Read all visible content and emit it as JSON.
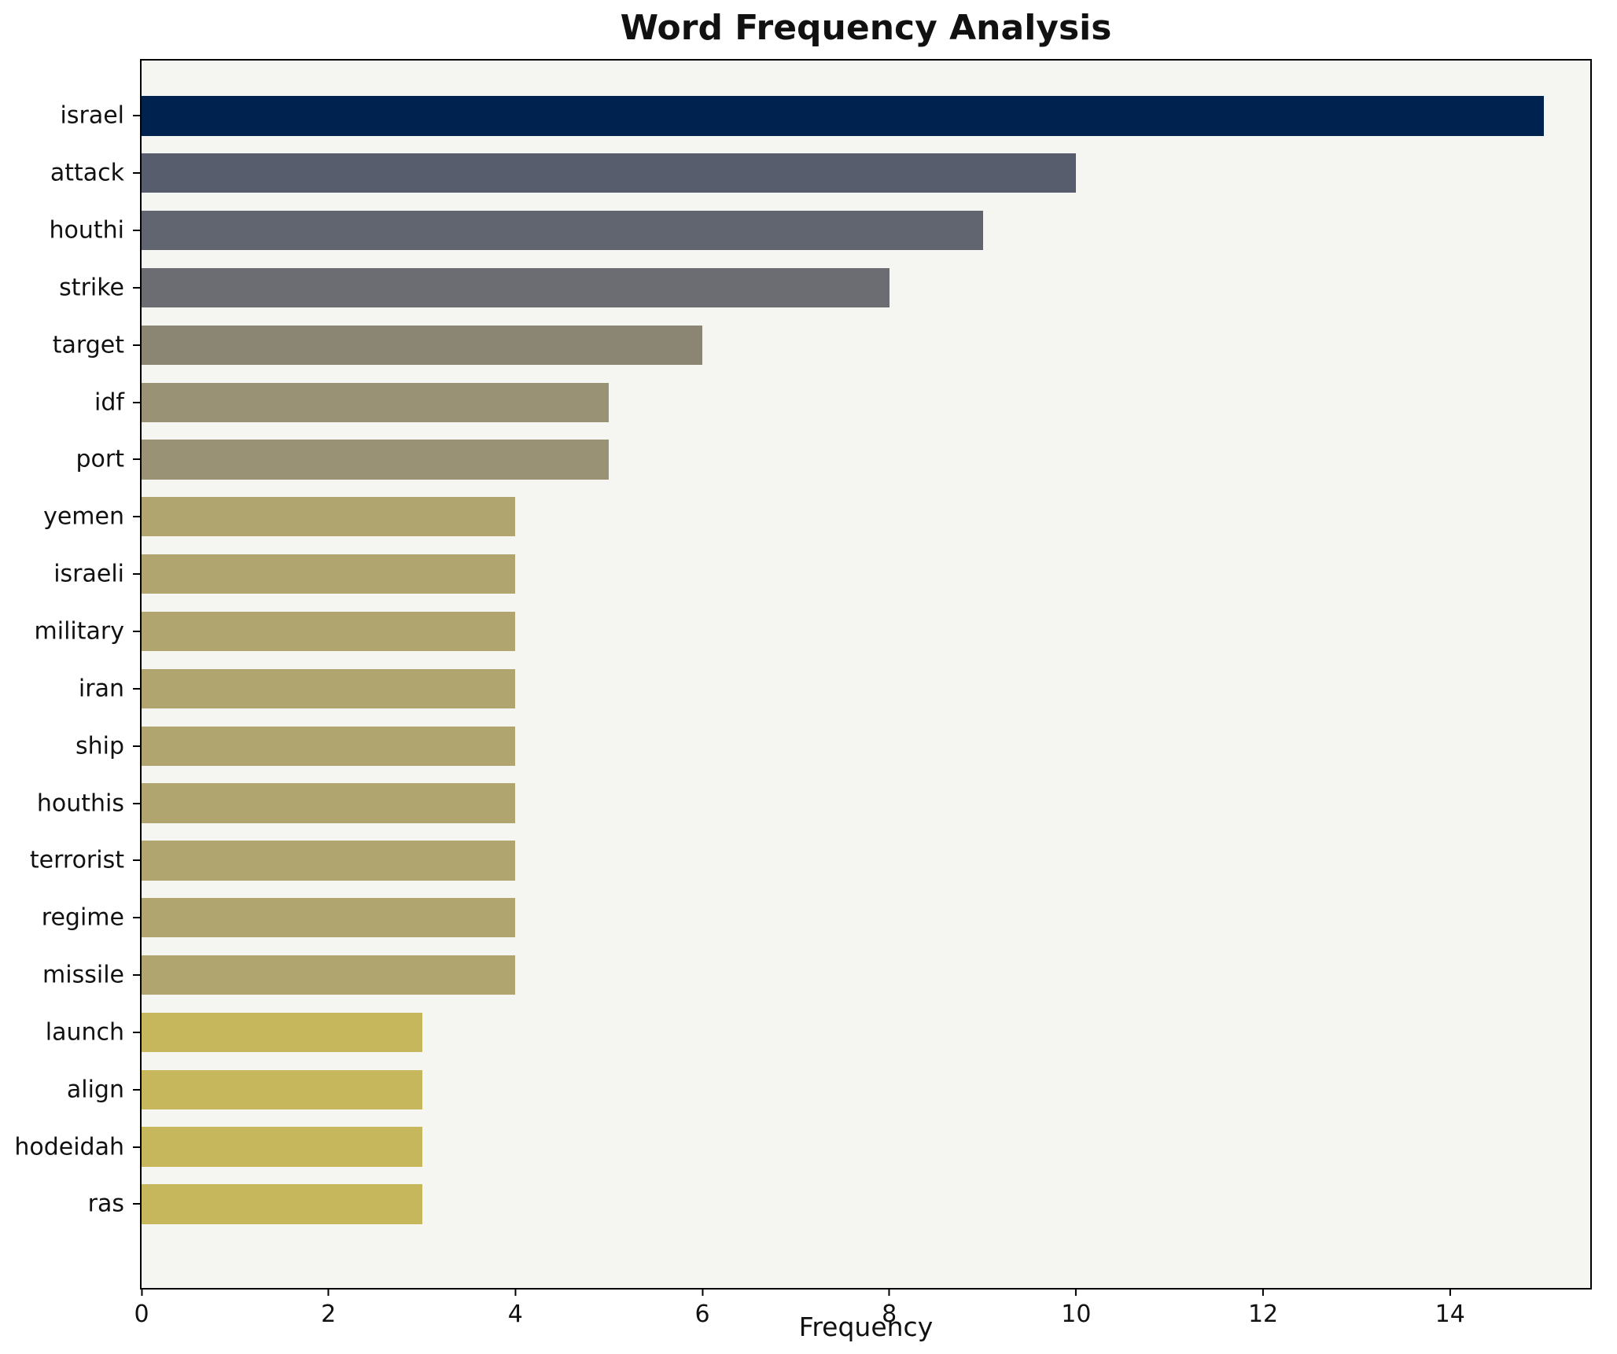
{
  "chart_data": {
    "type": "bar",
    "orientation": "horizontal",
    "title": "Word Frequency Analysis",
    "xlabel": "Frequency",
    "ylabel": "",
    "categories": [
      "israel",
      "attack",
      "houthi",
      "strike",
      "target",
      "idf",
      "port",
      "yemen",
      "israeli",
      "military",
      "iran",
      "ship",
      "houthis",
      "terrorist",
      "regime",
      "missile",
      "launch",
      "align",
      "hodeidah",
      "ras"
    ],
    "values": [
      15,
      10,
      9,
      8,
      6,
      5,
      5,
      4,
      4,
      4,
      4,
      4,
      4,
      4,
      4,
      4,
      3,
      3,
      3,
      3
    ],
    "bar_colors": [
      "#00224e",
      "#575d6d",
      "#616570",
      "#6b6d72",
      "#8b8674",
      "#9a9275",
      "#9a9275",
      "#b1a56f",
      "#b1a56f",
      "#b1a56f",
      "#b1a56f",
      "#b1a56f",
      "#b1a56f",
      "#b1a56f",
      "#b1a56f",
      "#b1a56f",
      "#c6b65c",
      "#c6b65c",
      "#c6b65c",
      "#c6b65c"
    ],
    "xlim": [
      0,
      15.5
    ],
    "x_ticks": [
      0,
      2,
      4,
      6,
      8,
      10,
      12,
      14
    ],
    "grid": false,
    "legend": null,
    "plot_background": "#f5f5f2",
    "figure_background": "#ffffff"
  }
}
